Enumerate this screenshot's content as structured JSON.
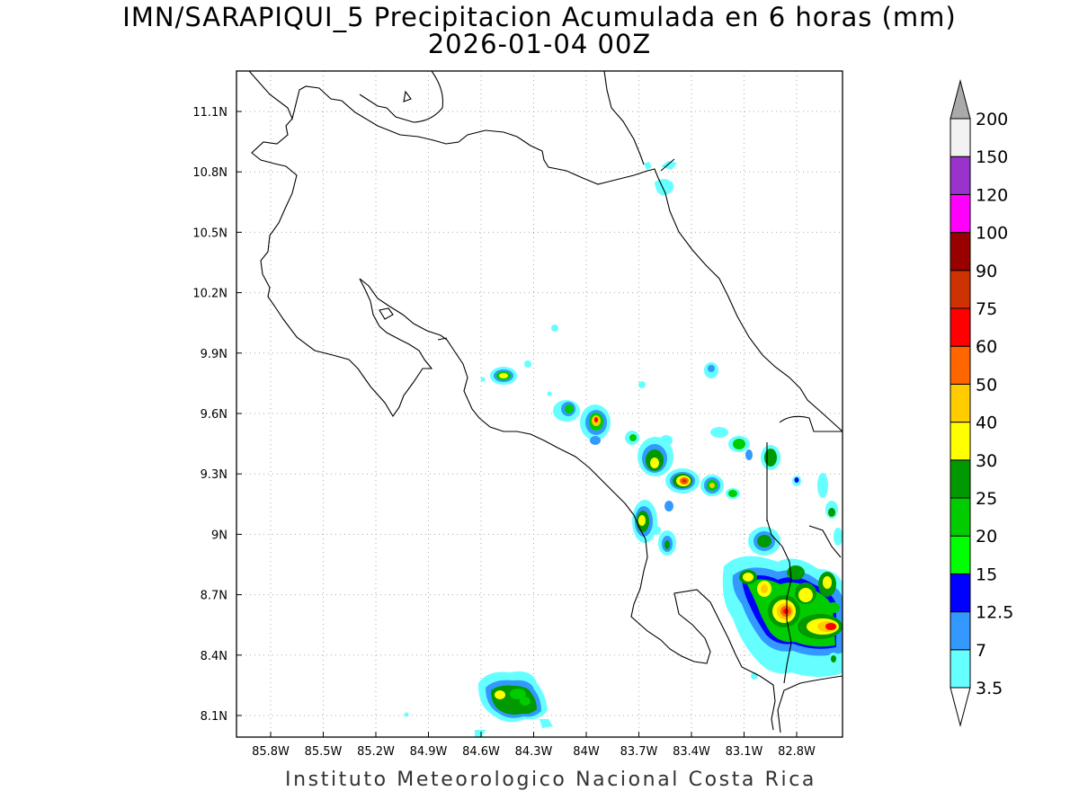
{
  "title": {
    "line1": "IMN/SARAPIQUI_5 Precipitacion Acumulada en 6 horas (mm)",
    "line2": "2026-01-04 00Z"
  },
  "map": {
    "lon_labels": [
      "85.8W",
      "85.5W",
      "85.2W",
      "84.9W",
      "84.6W",
      "84.3W",
      "84W",
      "83.7W",
      "83.4W",
      "83.1W",
      "82.8W"
    ],
    "lat_labels": [
      "11.1N",
      "10.8N",
      "10.5N",
      "10.2N",
      "9.9N",
      "9.6N",
      "9.3N",
      "9N",
      "8.7N",
      "8.4N",
      "8.1N"
    ],
    "grid_lines": "dotted"
  },
  "colorbar": {
    "unit": "mm",
    "levels": [
      "3.5",
      "7",
      "12.5",
      "15",
      "20",
      "25",
      "30",
      "40",
      "50",
      "60",
      "75",
      "90",
      "100",
      "120",
      "150",
      "200"
    ],
    "colors": [
      "#66ffff",
      "#3399ff",
      "#0000ff",
      "#00ff00",
      "#00cc00",
      "#009900",
      "#ffff00",
      "#ffcc00",
      "#ff6600",
      "#ff0000",
      "#cc3300",
      "#990000",
      "#ff00ff",
      "#9933cc",
      "#f2f2f2",
      "#aaaaaa"
    ]
  },
  "credit": "Instituto Meteorologico Nacional Costa Rica"
}
